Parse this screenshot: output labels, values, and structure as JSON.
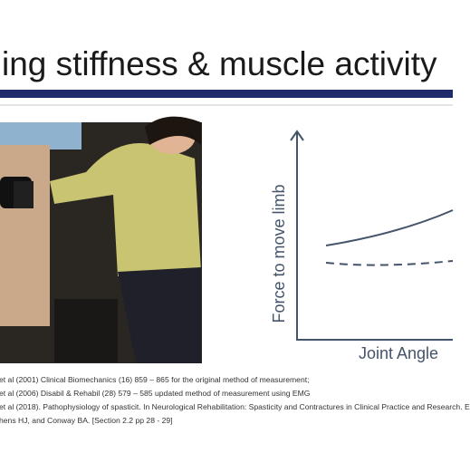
{
  "header": {
    "title": "ing stiffness & muscle activity"
  },
  "diagram": {
    "y_axis_label": "Force to move limb",
    "x_axis_label": "Joint Angle"
  },
  "references": [
    "et al (2001) Clinical Biomechanics (16) 859 – 865 for the original method of measurement;",
    "et al (2006) Disabil & Rehabil (28) 579 – 585 updated method of measurement using EMG",
    "et al (2018). Pathophysiology of spasticit. In Neurological Rehabilitation: Spasticity and Contractures in Clinical Practice and Research. E",
    "hens HJ, and Conway BA. [Section 2.2 pp 28 - 29]"
  ]
}
